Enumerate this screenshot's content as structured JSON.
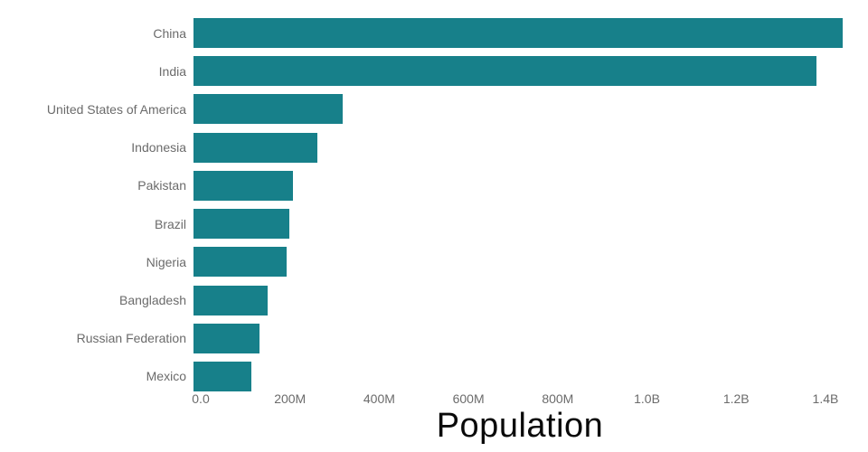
{
  "chart_data": {
    "type": "bar",
    "orientation": "horizontal",
    "title": "Population",
    "title_position": "bottom-center",
    "categories": [
      "China",
      "India",
      "United States of America",
      "Indonesia",
      "Pakistan",
      "Brazil",
      "Nigeria",
      "Bangladesh",
      "Russian Federation",
      "Mexico"
    ],
    "values_millions": [
      1439,
      1380,
      331,
      274,
      221,
      213,
      206,
      165,
      146,
      129
    ],
    "xlim_millions": [
      0,
      1471
    ],
    "xticks": [
      {
        "value_millions": 0,
        "label": "0.0"
      },
      {
        "value_millions": 200,
        "label": "200M"
      },
      {
        "value_millions": 400,
        "label": "400M"
      },
      {
        "value_millions": 600,
        "label": "600M"
      },
      {
        "value_millions": 800,
        "label": "800M"
      },
      {
        "value_millions": 1000,
        "label": "1.0B"
      },
      {
        "value_millions": 1200,
        "label": "1.2B"
      },
      {
        "value_millions": 1400,
        "label": "1.4B"
      }
    ],
    "grid": false,
    "legend": false,
    "bar_color": "#17808a",
    "label_color": "#6b6b6b",
    "title_color": "#0a0a0a",
    "background_color": "#ffffff"
  }
}
